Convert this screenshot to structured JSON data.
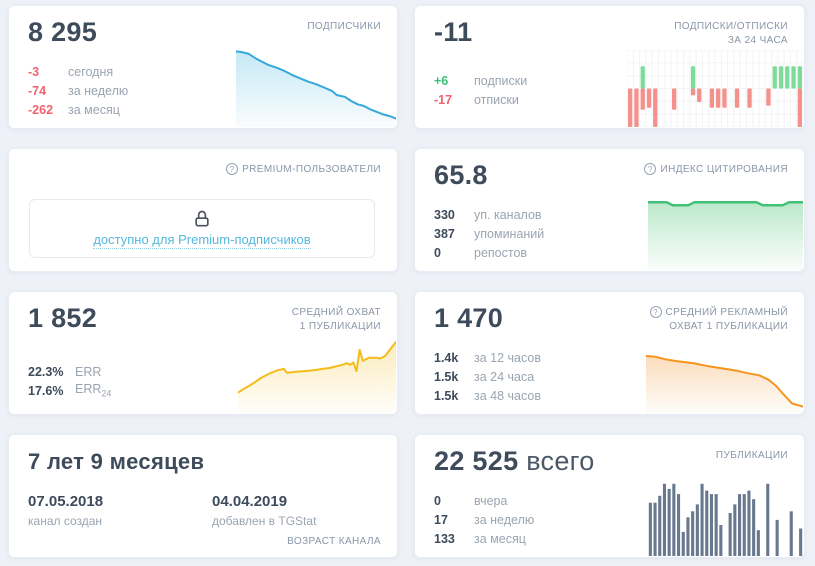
{
  "icons": {
    "help": "?"
  },
  "colors": {
    "background": "#eef1f7",
    "card": "#ffffff",
    "number": "#3e4b5b",
    "header": "#8a96a8",
    "label": "#9aa5b1",
    "negative": "#f2636c",
    "positive": "#3bc17c",
    "link": "#54b7dc",
    "line_blue": "#36a9da",
    "line_green": "#41c277",
    "line_yellow": "#f5bb1d",
    "line_orange": "#f7941e",
    "bar_slate": "#68798f",
    "bar_up_green": "#7edc9b",
    "bar_down_red": "#f5918c"
  },
  "cards": {
    "subscribers": {
      "title": "ПОДПИСЧИКИ",
      "value": "8 295",
      "stats": [
        {
          "value": "-3",
          "label": "сегодня",
          "color": "red"
        },
        {
          "value": "-74",
          "label": "за неделю",
          "color": "red"
        },
        {
          "value": "-262",
          "label": "за месяц",
          "color": "red"
        }
      ]
    },
    "subs_unsubs": {
      "title_line1": "ПОДПИСКИ/ОТПИСКИ",
      "title_line2": "ЗА 24 ЧАСА",
      "value": "-11",
      "stats": [
        {
          "value": "+6",
          "label": "подписки",
          "color": "green"
        },
        {
          "value": "-17",
          "label": "отписки",
          "color": "red"
        }
      ]
    },
    "premium": {
      "title": "PREMIUM-ПОЛЬЗОВАТЕЛИ",
      "locked_text": "доступно для Premium-подписчиков"
    },
    "citation": {
      "title": "ИНДЕКС ЦИТИРОВАНИЯ",
      "value": "65.8",
      "stats": [
        {
          "value": "330",
          "label": "уп. каналов"
        },
        {
          "value": "387",
          "label": "упоминаний"
        },
        {
          "value": "0",
          "label": "репостов"
        }
      ]
    },
    "avg_reach": {
      "title_line1": "СРЕДНИЙ ОХВАТ",
      "title_line2": "1 ПУБЛИКАЦИИ",
      "value": "1 852",
      "stats": [
        {
          "value": "22.3%",
          "label": "ERR"
        },
        {
          "value": "17.6%",
          "label": "ERR",
          "label_sub": "24"
        }
      ]
    },
    "avg_ad_reach": {
      "title_line1": "СРЕДНИЙ РЕКЛАМНЫЙ",
      "title_line2": "ОХВАТ 1 ПУБЛИКАЦИИ",
      "value": "1 470",
      "stats": [
        {
          "value": "1.4k",
          "label": "за 12 часов"
        },
        {
          "value": "1.5k",
          "label": "за 24 часа"
        },
        {
          "value": "1.5k",
          "label": "за 48 часов"
        }
      ]
    },
    "channel_age": {
      "value": "7 лет 9 месяцев",
      "footer": "ВОЗРАСТ КАНАЛА",
      "dates": [
        {
          "value": "07.05.2018",
          "label": "канал создан"
        },
        {
          "value": "04.04.2019",
          "label": "добавлен в TGStat"
        }
      ]
    },
    "publications": {
      "title": "ПУБЛИКАЦИИ",
      "value": "22 525",
      "value_suffix": "всего",
      "stats": [
        {
          "value": "0",
          "label": "вчера"
        },
        {
          "value": "17",
          "label": "за неделю"
        },
        {
          "value": "133",
          "label": "за месяц"
        }
      ]
    }
  },
  "chart_data": [
    {
      "type": "area",
      "name": "subscribers-trend",
      "summary": {
        "total": 8295,
        "today": -3,
        "week": -74,
        "month": -262
      },
      "color": "#36a9da",
      "fill": "#7fcce8",
      "fill_opacity_top": 0.45,
      "stroke_width": 2,
      "points": [
        [
          0,
          0.1
        ],
        [
          0.04,
          0.11
        ],
        [
          0.08,
          0.13
        ],
        [
          0.12,
          0.18
        ],
        [
          0.16,
          0.22
        ],
        [
          0.2,
          0.26
        ],
        [
          0.25,
          0.29
        ],
        [
          0.3,
          0.33
        ],
        [
          0.35,
          0.38
        ],
        [
          0.4,
          0.42
        ],
        [
          0.45,
          0.46
        ],
        [
          0.5,
          0.49
        ],
        [
          0.55,
          0.53
        ],
        [
          0.6,
          0.57
        ],
        [
          0.63,
          0.62
        ],
        [
          0.68,
          0.64
        ],
        [
          0.72,
          0.69
        ],
        [
          0.76,
          0.73
        ],
        [
          0.8,
          0.75
        ],
        [
          0.84,
          0.79
        ],
        [
          0.88,
          0.82
        ],
        [
          0.92,
          0.85
        ],
        [
          0.96,
          0.87
        ],
        [
          1,
          0.9
        ]
      ]
    },
    {
      "type": "signed_bar",
      "name": "subs-unsubs-24h",
      "summary": {
        "net": -11,
        "subs": 6,
        "unsubs": -17
      },
      "up_color": "#7edc9b",
      "down_color": "#f5918c",
      "grid": "#f2f3f5",
      "baseline": 0.5,
      "columns": [
        {
          "g": 0,
          "r": 1
        },
        {
          "g": 0,
          "r": 1
        },
        {
          "g": 0.58,
          "r": 0.55
        },
        {
          "g": 0,
          "r": 0.5
        },
        {
          "g": 0,
          "r": 1
        },
        {
          "g": 0,
          "r": 0
        },
        {
          "g": 0,
          "r": 0
        },
        {
          "g": 0,
          "r": 0.55
        },
        {
          "g": 0,
          "r": 0
        },
        {
          "g": 0,
          "r": 0
        },
        {
          "g": 0.58,
          "r": 0.18
        },
        {
          "g": 0,
          "r": 0.35
        },
        {
          "g": 0,
          "r": 0
        },
        {
          "g": 0,
          "r": 0.5
        },
        {
          "g": 0,
          "r": 0.5
        },
        {
          "g": 0,
          "r": 0.5
        },
        {
          "g": 0,
          "r": 0
        },
        {
          "g": 0,
          "r": 0.5
        },
        {
          "g": 0,
          "r": 0
        },
        {
          "g": 0,
          "r": 0.5
        },
        {
          "g": 0,
          "r": 0
        },
        {
          "g": 0,
          "r": 0
        },
        {
          "g": 0,
          "r": 0.45
        },
        {
          "g": 0.58,
          "r": 0
        },
        {
          "g": 0.58,
          "r": 0
        },
        {
          "g": 0.58,
          "r": 0
        },
        {
          "g": 0.58,
          "r": 0
        },
        {
          "g": 0.58,
          "r": 1
        }
      ]
    },
    {
      "type": "area",
      "name": "citation-index-trend",
      "summary": {
        "index": 65.8,
        "channels": 330,
        "mentions": 387,
        "reposts": 0
      },
      "color": "#41c277",
      "fill": "#8fd9a8",
      "fill_opacity_top": 0.6,
      "stroke_width": 2.5,
      "points": [
        [
          0,
          0.06
        ],
        [
          0.12,
          0.06
        ],
        [
          0.16,
          0.1
        ],
        [
          0.26,
          0.1
        ],
        [
          0.3,
          0.06
        ],
        [
          0.7,
          0.06
        ],
        [
          0.74,
          0.1
        ],
        [
          0.87,
          0.1
        ],
        [
          0.91,
          0.06
        ],
        [
          1,
          0.06
        ]
      ]
    },
    {
      "type": "area",
      "name": "avg-reach-trend",
      "summary": {
        "avg_reach": 1852,
        "err": "22.3%",
        "err24": "17.6%"
      },
      "color": "#f5bb1d",
      "fill": "#f8d978",
      "fill_opacity_top": 0.5,
      "stroke_width": 2,
      "points": [
        [
          0,
          0.74
        ],
        [
          0.05,
          0.68
        ],
        [
          0.1,
          0.62
        ],
        [
          0.15,
          0.55
        ],
        [
          0.2,
          0.5
        ],
        [
          0.25,
          0.46
        ],
        [
          0.29,
          0.44
        ],
        [
          0.31,
          0.49
        ],
        [
          0.36,
          0.48
        ],
        [
          0.42,
          0.47
        ],
        [
          0.48,
          0.46
        ],
        [
          0.54,
          0.44
        ],
        [
          0.58,
          0.43
        ],
        [
          0.62,
          0.41
        ],
        [
          0.66,
          0.39
        ],
        [
          0.69,
          0.37
        ],
        [
          0.71,
          0.39
        ],
        [
          0.73,
          0.36
        ],
        [
          0.75,
          0.47
        ],
        [
          0.77,
          0.2
        ],
        [
          0.79,
          0.34
        ],
        [
          0.83,
          0.3
        ],
        [
          0.87,
          0.3
        ],
        [
          0.9,
          0.31
        ],
        [
          0.93,
          0.28
        ],
        [
          1,
          0.1
        ]
      ]
    },
    {
      "type": "area",
      "name": "avg-ad-reach-trend",
      "summary": {
        "avg_ad_reach": 1470,
        "h12": "1.4k",
        "h24": "1.5k",
        "h48": "1.5k"
      },
      "color": "#f7941e",
      "fill": "#f9c084",
      "fill_opacity_top": 0.55,
      "stroke_width": 2,
      "points": [
        [
          0,
          0.11
        ],
        [
          0.06,
          0.12
        ],
        [
          0.12,
          0.16
        ],
        [
          0.2,
          0.19
        ],
        [
          0.3,
          0.22
        ],
        [
          0.4,
          0.27
        ],
        [
          0.5,
          0.31
        ],
        [
          0.58,
          0.34
        ],
        [
          0.65,
          0.38
        ],
        [
          0.72,
          0.41
        ],
        [
          0.78,
          0.48
        ],
        [
          0.83,
          0.58
        ],
        [
          0.88,
          0.72
        ],
        [
          0.93,
          0.85
        ],
        [
          1,
          0.9
        ]
      ]
    },
    {
      "type": "bar",
      "name": "publications-histogram",
      "summary": {
        "total": 22525,
        "yesterday": 0,
        "week": 17,
        "month": 133
      },
      "color": "#68798f",
      "values": [
        0.62,
        0.62,
        0.7,
        0.84,
        0.78,
        0.84,
        0.72,
        0.28,
        0.45,
        0.52,
        0.6,
        0.84,
        0.76,
        0.72,
        0.72,
        0.36,
        0,
        0.5,
        0.6,
        0.72,
        0.72,
        0.76,
        0.66,
        0.3,
        0,
        0.84,
        0,
        0.42,
        0,
        0,
        0.52,
        0,
        0.32
      ]
    }
  ]
}
